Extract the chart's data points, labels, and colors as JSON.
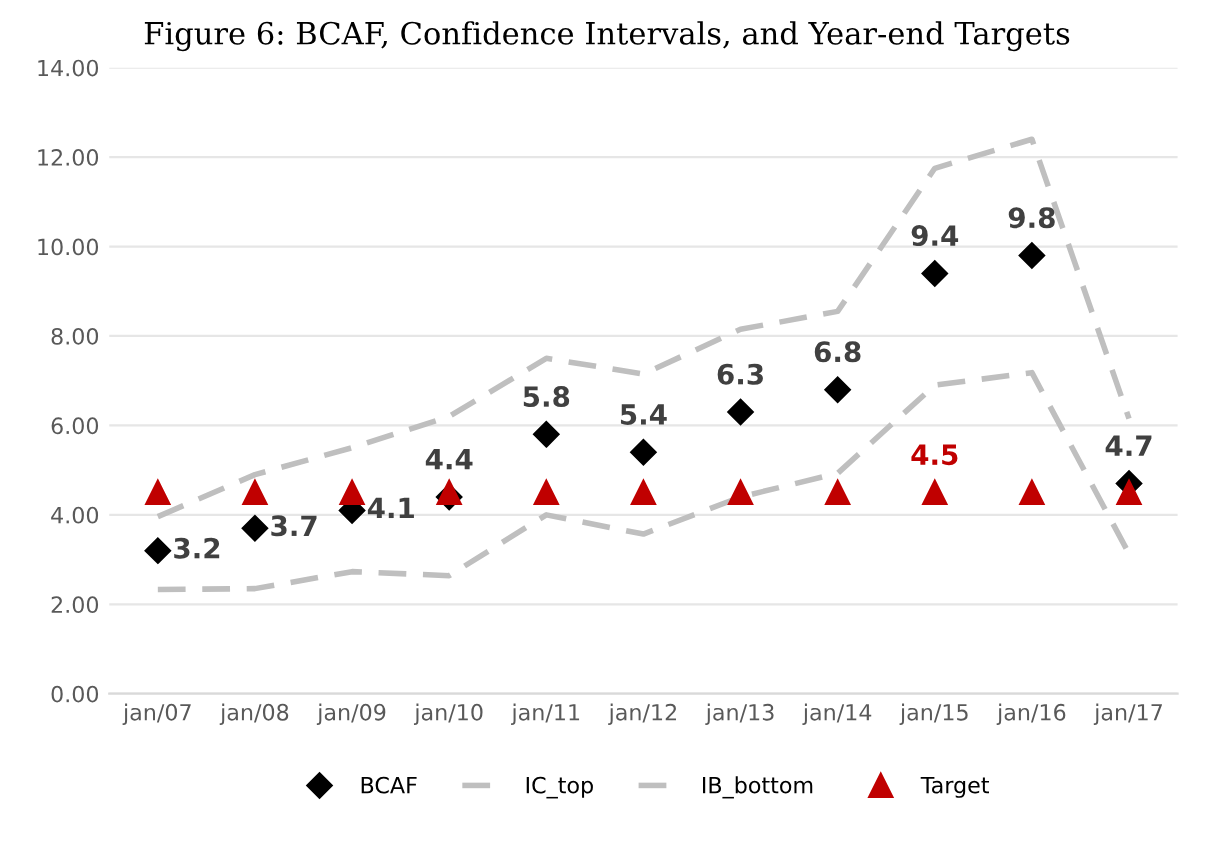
{
  "chart_data": {
    "type": "scatter",
    "title": "Figure 6: BCAF, Confidence Intervals, and Year-end Targets",
    "categories": [
      "jan/07",
      "jan/08",
      "jan/09",
      "jan/10",
      "jan/11",
      "jan/12",
      "jan/13",
      "jan/14",
      "jan/15",
      "jan/16",
      "jan/17"
    ],
    "series": [
      {
        "name": "BCAF",
        "marker": "diamond",
        "color": "#000000",
        "values": [
          3.2,
          3.7,
          4.1,
          4.4,
          5.8,
          5.4,
          6.3,
          6.8,
          9.4,
          9.8,
          4.7
        ],
        "value_labels": [
          "3.2",
          "3.7",
          "4.1",
          "4.4",
          "5.8",
          "5.4",
          "6.3",
          "6.8",
          "9.4",
          "9.8",
          "4.7"
        ]
      },
      {
        "name": "IC_top",
        "type": "line",
        "line_style": "dashed",
        "color": "#bfbfbf",
        "values": [
          3.96,
          4.9,
          5.5,
          6.2,
          7.5,
          7.15,
          8.15,
          8.55,
          11.75,
          12.4,
          6.15
        ]
      },
      {
        "name": "IB_bottom",
        "type": "line",
        "line_style": "dashed",
        "color": "#bfbfbf",
        "values": [
          2.33,
          2.35,
          2.73,
          2.64,
          4.0,
          3.57,
          4.4,
          4.93,
          6.9,
          7.18,
          3.13
        ]
      },
      {
        "name": "Target",
        "marker": "triangle",
        "color": "#c00000",
        "values": [
          4.5,
          4.5,
          4.5,
          4.5,
          4.5,
          4.5,
          4.5,
          4.5,
          4.5,
          4.5,
          4.5
        ],
        "value_labels": [
          null,
          null,
          null,
          null,
          null,
          null,
          null,
          null,
          "4.5",
          null,
          null
        ]
      }
    ],
    "ylim": [
      0,
      14
    ],
    "yticks": [
      {
        "value": 0,
        "label": "0.00"
      },
      {
        "value": 2,
        "label": "2.00"
      },
      {
        "value": 4,
        "label": "4.00"
      },
      {
        "value": 6,
        "label": "6.00"
      },
      {
        "value": 8,
        "label": "8.00"
      },
      {
        "value": 10,
        "label": "10.00"
      },
      {
        "value": 12,
        "label": "12.00"
      },
      {
        "value": 14,
        "label": "14.00"
      }
    ],
    "grid": "y",
    "legend": "bottom"
  }
}
